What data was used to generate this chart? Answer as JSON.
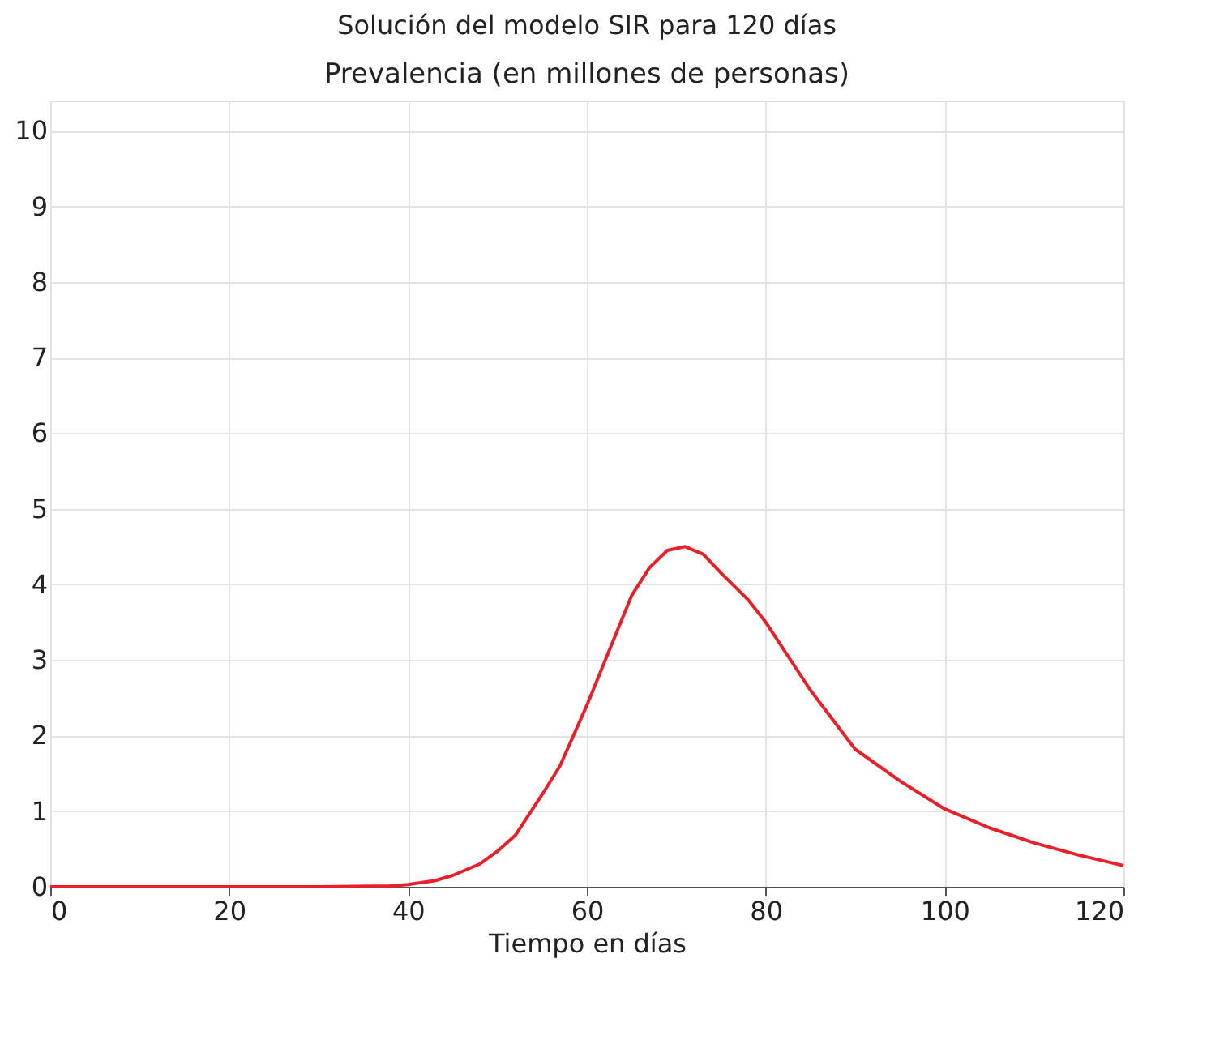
{
  "chart_data": {
    "type": "line",
    "title": "Solución del modelo SIR para 120 días",
    "ylabel": "Prevalencia (en millones de personas)",
    "xlabel": "Tiempo en días",
    "series": [
      {
        "color": "#e8202a",
        "x": [
          0,
          10,
          20,
          30,
          38,
          40,
          43,
          45,
          48,
          50,
          52,
          55,
          57,
          60,
          62,
          65,
          67,
          69,
          71,
          73,
          75,
          78,
          80,
          85,
          90,
          95,
          100,
          105,
          110,
          115,
          120
        ],
        "values": [
          0,
          0,
          0,
          0,
          0.01,
          0.03,
          0.08,
          0.15,
          0.3,
          0.47,
          0.68,
          1.22,
          1.6,
          2.4,
          2.98,
          3.85,
          4.22,
          4.45,
          4.5,
          4.4,
          4.15,
          3.8,
          3.5,
          2.6,
          1.82,
          1.4,
          1.03,
          0.78,
          0.58,
          0.42,
          0.28
        ]
      }
    ],
    "xlim": [
      0,
      120
    ],
    "xticks": [
      0,
      20,
      40,
      60,
      80,
      100,
      120
    ],
    "ylim": [
      0,
      10.4
    ],
    "yticks": [
      0,
      1,
      2,
      3,
      4,
      5,
      6,
      7,
      8,
      9,
      10
    ],
    "grid": true,
    "marker": "none",
    "line_style": "solid"
  }
}
